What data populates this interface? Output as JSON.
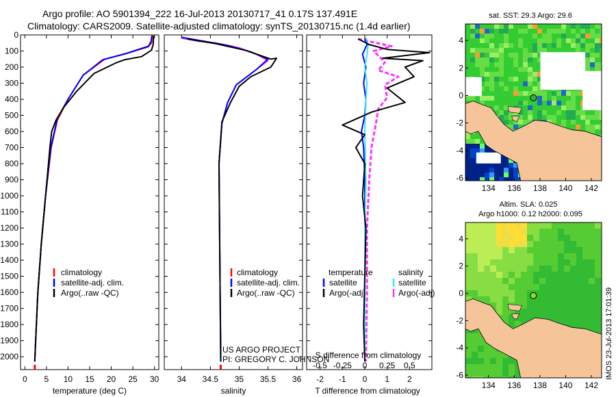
{
  "header": {
    "line1": "Argo profile: AO 5901394_222 16-Jul-2013 20130717_41 0.17S 137.491E",
    "line2": "Climatology: CARS2009. Satellite-adjusted climatology: synTS_20130715.nc (1.4d earlier)"
  },
  "colors": {
    "climatology": "#ff0000",
    "satellite": "#0000ff",
    "argo": "#000000",
    "magenta": "#ff33ff",
    "cyan": "#33e6ff",
    "land": "#f5c499",
    "green": "#33cc33",
    "dark_blue": "#002288"
  },
  "chart_data": [
    {
      "id": "temperature",
      "type": "line",
      "xlabel": "temperature (deg C)",
      "ylabel": "",
      "xlim": [
        -1,
        31
      ],
      "ylim": [
        2080,
        0
      ],
      "xticks": [
        "0",
        "5",
        "10",
        "15",
        "20",
        "25",
        "30"
      ],
      "xtick_values": [
        0,
        5,
        10,
        15,
        20,
        25,
        30
      ],
      "yticks": [
        "0",
        "100",
        "200",
        "300",
        "400",
        "500",
        "600",
        "700",
        "800",
        "900",
        "1000",
        "1100",
        "1200",
        "1300",
        "1400",
        "1500",
        "1600",
        "1700",
        "1800",
        "1900",
        "2000"
      ],
      "ytick_values": [
        0,
        100,
        200,
        300,
        400,
        500,
        600,
        700,
        800,
        900,
        1000,
        1100,
        1200,
        1300,
        1400,
        1500,
        1600,
        1700,
        1800,
        1900,
        2000
      ],
      "legend": [
        "climatology",
        "satellite-adj. clim.",
        "Argo(..raw -QC)"
      ],
      "series": [
        {
          "name": "climatology",
          "color_key": "climatology",
          "points": [
            [
              29.5,
              0
            ],
            [
              29.3,
              50
            ],
            [
              28.5,
              75
            ],
            [
              23,
              120
            ],
            [
              18.5,
              150
            ],
            [
              13.5,
              250
            ],
            [
              10,
              400
            ],
            [
              7.5,
              530
            ],
            [
              6.1,
              700
            ],
            [
              4.8,
              1000
            ],
            [
              3.8,
              1300
            ],
            [
              3.0,
              1600
            ],
            [
              2.5,
              1900
            ],
            [
              2.3,
              2030
            ]
          ]
        },
        {
          "name": "satellite-adj. clim.",
          "color_key": "satellite",
          "points": [
            [
              29.4,
              5
            ],
            [
              29.2,
              40
            ],
            [
              28.6,
              70
            ],
            [
              23.5,
              115
            ],
            [
              18,
              155
            ],
            [
              13.5,
              250
            ],
            [
              10,
              400
            ],
            [
              7.5,
              520
            ],
            [
              6.0,
              700
            ],
            [
              4.8,
              1000
            ],
            [
              3.8,
              1300
            ],
            [
              3.0,
              1600
            ],
            [
              2.5,
              1900
            ],
            [
              2.3,
              2030
            ]
          ]
        },
        {
          "name": "Argo(..raw -QC)",
          "color_key": "argo",
          "points": [
            [
              29.8,
              5
            ],
            [
              29.7,
              60
            ],
            [
              29.3,
              95
            ],
            [
              27,
              135
            ],
            [
              23,
              155
            ],
            [
              21,
              175
            ],
            [
              16,
              240
            ],
            [
              12,
              350
            ],
            [
              9,
              450
            ],
            [
              7.2,
              530
            ],
            [
              6.2,
              600
            ],
            [
              5.8,
              700
            ],
            [
              4.8,
              1000
            ],
            [
              3.8,
              1300
            ],
            [
              3.0,
              1600
            ],
            [
              2.5,
              1900
            ],
            [
              2.3,
              2030
            ]
          ]
        }
      ]
    },
    {
      "id": "salinity",
      "type": "line",
      "xlabel": "salinity",
      "xlim": [
        33.7,
        36.1
      ],
      "ylim": [
        2080,
        0
      ],
      "xticks": [
        "34",
        "34.5",
        "35",
        "35.5",
        "36"
      ],
      "xtick_values": [
        34,
        34.5,
        35,
        35.5,
        36
      ],
      "legend": [
        "climatology",
        "satellite-adj. clim.",
        "Argo(..raw -QC)"
      ],
      "series": [
        {
          "name": "climatology",
          "color_key": "magenta",
          "points": [
            [
              34.0,
              20
            ],
            [
              34.3,
              40
            ],
            [
              34.6,
              50
            ],
            [
              35.0,
              80
            ],
            [
              35.3,
              120
            ],
            [
              35.5,
              160
            ],
            [
              35.3,
              215
            ],
            [
              34.95,
              310
            ],
            [
              34.8,
              420
            ],
            [
              34.7,
              550
            ],
            [
              34.65,
              800
            ],
            [
              34.66,
              1200
            ],
            [
              34.67,
              1600
            ],
            [
              34.68,
              2030
            ]
          ]
        },
        {
          "name": "satellite-adj. clim.",
          "color_key": "satellite",
          "points": [
            [
              34.0,
              15
            ],
            [
              34.4,
              40
            ],
            [
              34.8,
              65
            ],
            [
              35.2,
              105
            ],
            [
              35.5,
              150
            ],
            [
              35.3,
              215
            ],
            [
              34.95,
              310
            ],
            [
              34.8,
              420
            ],
            [
              34.7,
              550
            ],
            [
              34.65,
              800
            ],
            [
              34.66,
              1200
            ],
            [
              34.67,
              1600
            ],
            [
              34.68,
              2030
            ]
          ]
        },
        {
          "name": "Argo(..raw -QC)",
          "color_key": "argo",
          "points": [
            [
              34.1,
              25
            ],
            [
              34.6,
              55
            ],
            [
              35.1,
              95
            ],
            [
              35.55,
              150
            ],
            [
              35.65,
              145
            ],
            [
              35.55,
              200
            ],
            [
              35.2,
              260
            ],
            [
              35.0,
              320
            ],
            [
              34.85,
              420
            ],
            [
              34.7,
              540
            ],
            [
              34.65,
              800
            ],
            [
              34.66,
              1200
            ],
            [
              34.67,
              1600
            ],
            [
              34.68,
              2030
            ]
          ]
        }
      ]
    },
    {
      "id": "difference",
      "type": "line",
      "xlabel": "T difference from climatology",
      "xlabel_top": "S difference from climatology",
      "xlim": [
        -2.6,
        3.0
      ],
      "ylim": [
        2080,
        0
      ],
      "xticks": [
        "-2",
        "-1",
        "0",
        "1",
        "2"
      ],
      "xtick_values": [
        -2,
        -1,
        0,
        1,
        2
      ],
      "xticks2": [
        "-0.5",
        "-0.25",
        "0",
        "0.25",
        "0.5"
      ],
      "legend_t_title": "temperature",
      "legend_s_title": "salinity",
      "legend_t": [
        "satellite",
        "Argo(-adj)"
      ],
      "legend_s": [
        "satellite",
        "Argo(-adj)"
      ],
      "series": [
        {
          "name": "T satellite",
          "color_key": "satellite",
          "points": [
            [
              0,
              20
            ],
            [
              0.1,
              60
            ],
            [
              -0.1,
              120
            ],
            [
              0.05,
              200
            ],
            [
              -0.05,
              300
            ],
            [
              0.05,
              400
            ],
            [
              0.0,
              500
            ],
            [
              -0.15,
              600
            ],
            [
              -0.05,
              700
            ],
            [
              0.0,
              900
            ],
            [
              0.0,
              1200
            ],
            [
              0.0,
              1600
            ],
            [
              0.0,
              2030
            ]
          ]
        },
        {
          "name": "T Argo(-adj)",
          "color_key": "argo",
          "points": [
            [
              -0.3,
              25
            ],
            [
              0.2,
              60
            ],
            [
              1.0,
              90
            ],
            [
              2.9,
              110
            ],
            [
              0.8,
              145
            ],
            [
              2.6,
              160
            ],
            [
              1.8,
              200
            ],
            [
              2.2,
              260
            ],
            [
              1.0,
              330
            ],
            [
              1.8,
              420
            ],
            [
              0.3,
              480
            ],
            [
              -1.0,
              560
            ],
            [
              0.0,
              620
            ],
            [
              -0.4,
              700
            ],
            [
              0.0,
              800
            ],
            [
              -0.1,
              1000
            ],
            [
              0.05,
              1200
            ],
            [
              0.0,
              1500
            ],
            [
              -0.05,
              1800
            ],
            [
              0.0,
              2030
            ]
          ]
        },
        {
          "name": "S satellite",
          "color_key": "cyan",
          "points": [
            [
              0.05,
              20
            ],
            [
              0.15,
              60
            ],
            [
              0.1,
              120
            ],
            [
              0.0,
              200
            ],
            [
              0.1,
              300
            ],
            [
              0.05,
              400
            ],
            [
              0.0,
              600
            ],
            [
              0.05,
              900
            ],
            [
              0.0,
              1200
            ],
            [
              0.0,
              1600
            ],
            [
              0.0,
              2030
            ]
          ]
        },
        {
          "name": "S Argo(-adj)",
          "color_key": "magenta",
          "points": [
            [
              -0.3,
              25
            ],
            [
              1.2,
              70
            ],
            [
              0.4,
              100
            ],
            [
              0.9,
              170
            ],
            [
              0.6,
              220
            ],
            [
              1.5,
              260
            ],
            [
              0.9,
              310
            ],
            [
              1.0,
              390
            ],
            [
              0.6,
              460
            ],
            [
              0.5,
              550
            ],
            [
              0.3,
              700
            ],
            [
              0.2,
              900
            ],
            [
              0.1,
              1200
            ],
            [
              0.1,
              1600
            ],
            [
              0.05,
              2030
            ]
          ]
        }
      ]
    },
    {
      "id": "sst_map",
      "type": "heatmap",
      "title": "sat. SST: 29.3 Argo: 29.6",
      "xlim": [
        132.2,
        142.8
      ],
      "ylim": [
        -6.2,
        5.2
      ],
      "xticks": [
        "134",
        "136",
        "138",
        "140",
        "142"
      ],
      "xtick_values": [
        134,
        136,
        138,
        140,
        142
      ],
      "yticks": [
        "4",
        "2",
        "0",
        "-2",
        "-4",
        "-6"
      ],
      "ytick_values": [
        4,
        2,
        0,
        -2,
        -4,
        -6
      ],
      "float_position": [
        137.491,
        -0.17
      ]
    },
    {
      "id": "sla_map",
      "type": "heatmap",
      "title": "Altim. SLA: 0.025",
      "subtitle": "Argo h1000: 0.12 h2000: 0.095",
      "xlim": [
        132.2,
        142.8
      ],
      "ylim": [
        -6.2,
        5.2
      ],
      "xticks": [
        "134",
        "136",
        "138",
        "140",
        "142"
      ],
      "xtick_values": [
        134,
        136,
        138,
        140,
        142
      ],
      "yticks": [
        "4",
        "2",
        "0",
        "-2",
        "-4",
        "-6"
      ],
      "ytick_values": [
        4,
        2,
        0,
        -2,
        -4,
        -6
      ],
      "float_position": [
        137.491,
        -0.17
      ]
    }
  ],
  "credits": {
    "project": "US ARGO PROJECT",
    "pi": "PI: GREGORY C. JOHNSON",
    "stamp": "IMOS 23-Jul-2013 17:01:39"
  }
}
